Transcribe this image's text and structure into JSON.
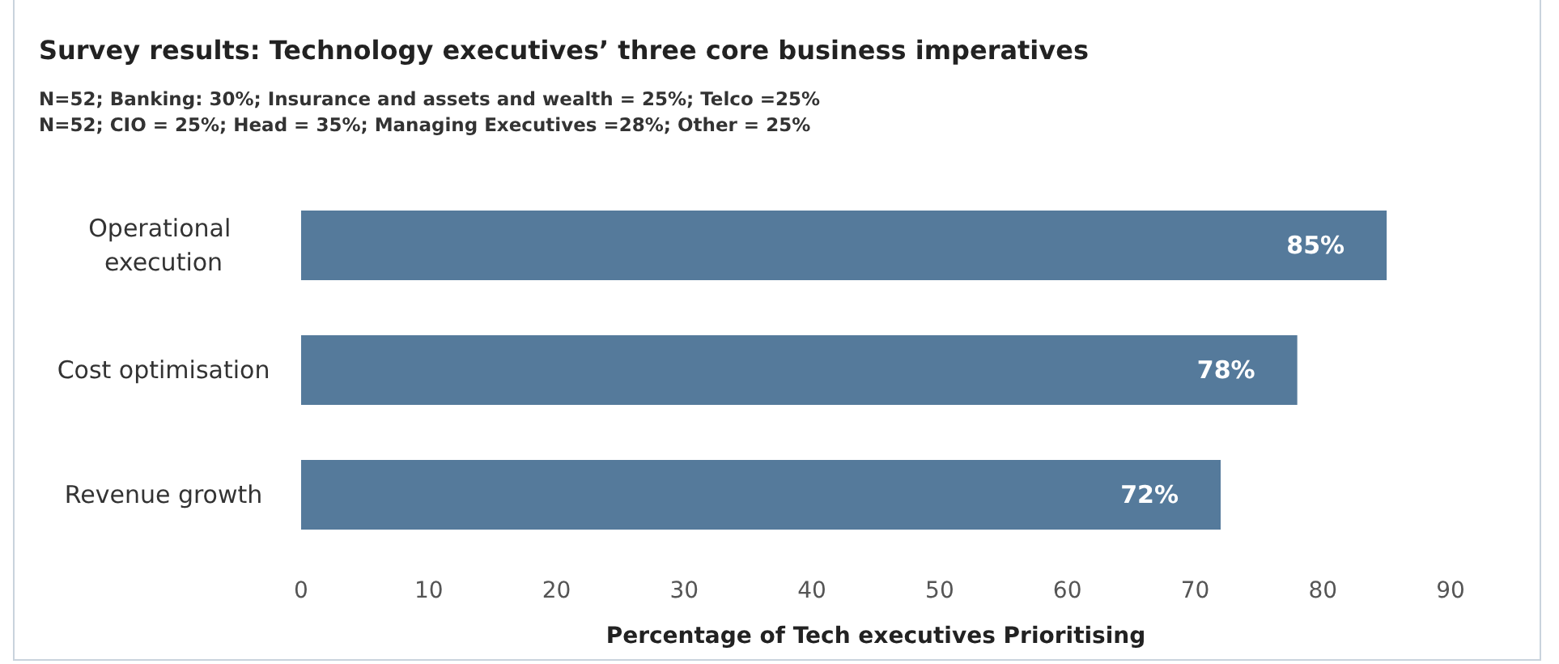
{
  "chart_data": {
    "type": "bar",
    "orientation": "horizontal",
    "title": "Survey results: Technology executives’ three core business imperatives",
    "subtitle": "N=52; Banking: 30%; Insurance and assets and wealth = 25%; Telco =25%\nN=52; CIO = 25%; Head = 35%; Managing Executives =28%; Other = 25%",
    "categories": [
      "Operational execution",
      "Cost optimisation",
      "Revenue growth"
    ],
    "values": [
      85,
      78,
      72
    ],
    "color": "#557a9b",
    "value_labels": [
      "85%",
      "78%",
      "72%"
    ],
    "xlabel": "Percentage of Tech executives Prioritising",
    "xlim": [
      0,
      90
    ],
    "xticks": [
      0,
      10,
      20,
      30,
      40,
      50,
      60,
      70,
      80,
      90
    ],
    "grid": false
  }
}
